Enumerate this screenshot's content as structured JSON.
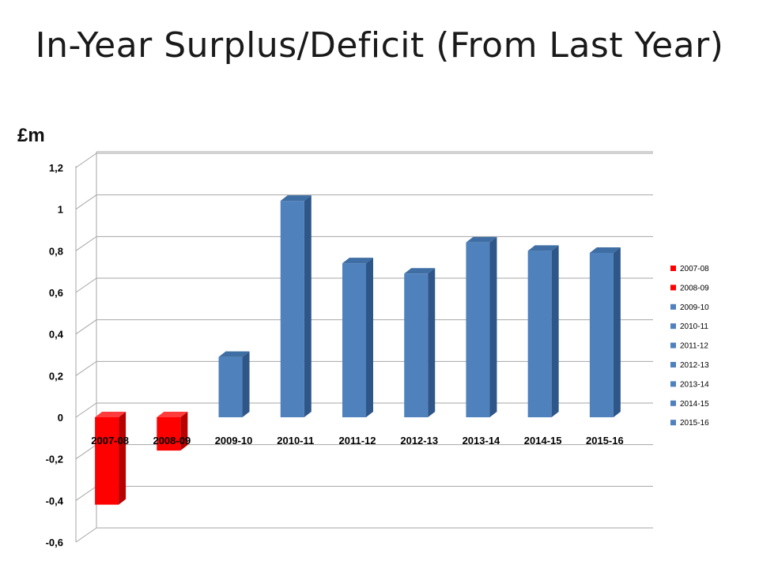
{
  "slide": {
    "title": "In-Year Surplus/Deficit (From Last Year)",
    "unit_label": "£m"
  },
  "chart_data": {
    "type": "bar",
    "style": "3d-column",
    "categories": [
      "2007-08",
      "2008-09",
      "2009-10",
      "2010-11",
      "2011-12",
      "2012-13",
      "2013-14",
      "2014-15",
      "2015-16"
    ],
    "values": [
      -0.42,
      -0.16,
      0.29,
      1.04,
      0.74,
      0.69,
      0.84,
      0.8,
      0.79
    ],
    "ylabel": "£m",
    "ylim": [
      -0.6,
      1.2
    ],
    "yticks": [
      -0.6,
      -0.4,
      -0.2,
      0,
      0.2,
      0.4,
      0.6,
      0.8,
      1,
      1.2
    ],
    "ytick_labels": [
      "-0,6",
      "-0,4",
      "-0,2",
      "0",
      "0,2",
      "0,4",
      "0,6",
      "0,8",
      "1",
      "1,2"
    ],
    "grid": true,
    "legend": {
      "placement": "right",
      "entries": [
        "2007-08",
        "2008-09",
        "2009-10",
        "2010-11",
        "2011-12",
        "2012-13",
        "2013-14",
        "2014-15",
        "2015-16"
      ]
    },
    "colors": {
      "negative": "#ff0000",
      "negative_side": "#b80000",
      "negative_top": "#ff3b3b",
      "positive": "#4f81bd",
      "positive_side": "#2f5688",
      "positive_top": "#3e6ea3",
      "grid": "#a6a6a6"
    }
  }
}
